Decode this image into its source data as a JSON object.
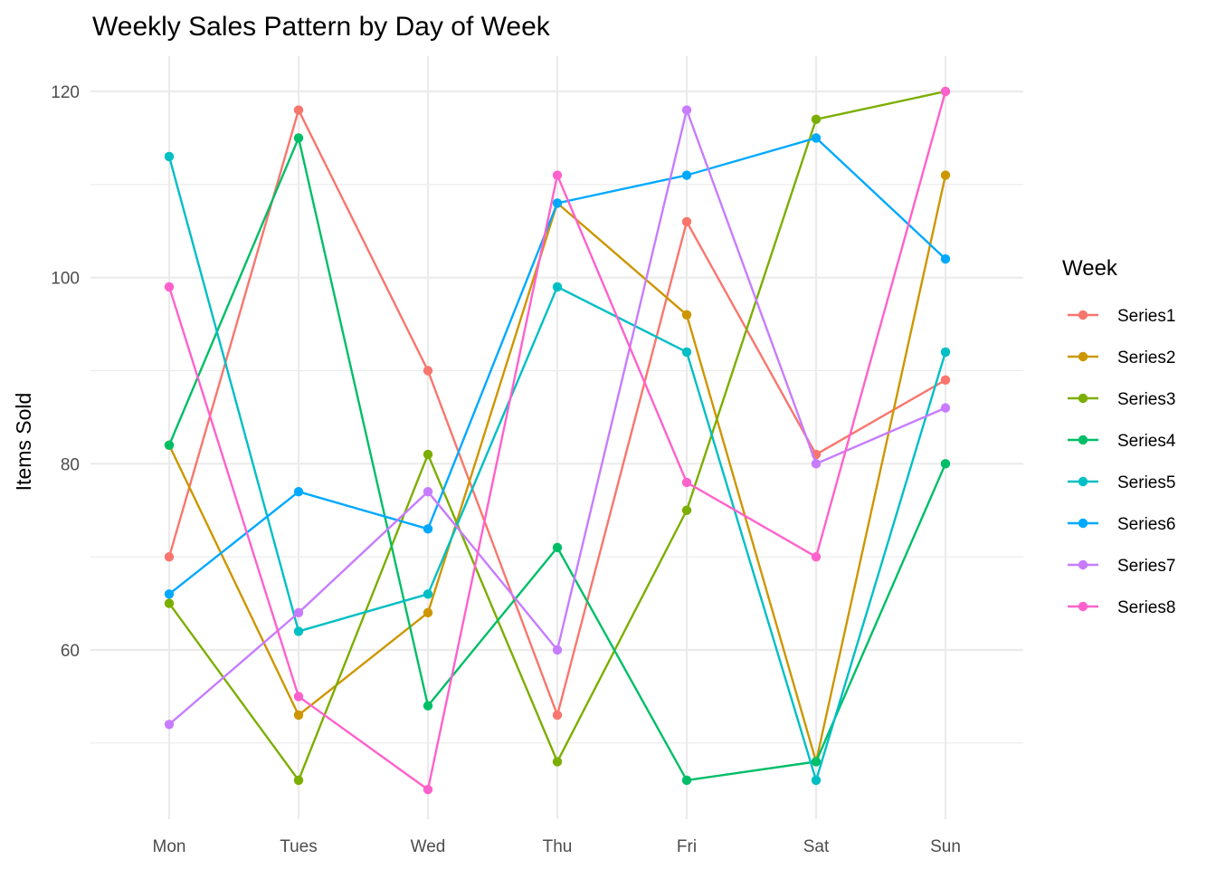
{
  "chart_data": {
    "type": "line",
    "title": "Weekly Sales Pattern by Day of Week",
    "xlabel": "",
    "ylabel": "Items Sold",
    "categories": [
      "Mon",
      "Tues",
      "Wed",
      "Thu",
      "Fri",
      "Sat",
      "Sun"
    ],
    "ylim": [
      42,
      124
    ],
    "yticks": [
      60,
      80,
      100,
      120
    ],
    "grid": true,
    "legend": {
      "title": "Week",
      "position": "right"
    },
    "series": [
      {
        "name": "Series1",
        "color": "#F8766D",
        "values": [
          70,
          118,
          90,
          53,
          106,
          81,
          89
        ]
      },
      {
        "name": "Series2",
        "color": "#CD9600",
        "values": [
          82,
          53,
          64,
          108,
          96,
          48,
          111
        ]
      },
      {
        "name": "Series3",
        "color": "#7CAE00",
        "values": [
          65,
          46,
          81,
          48,
          75,
          117,
          120
        ]
      },
      {
        "name": "Series4",
        "color": "#00BE67",
        "values": [
          82,
          115,
          54,
          71,
          46,
          48,
          80
        ]
      },
      {
        "name": "Series5",
        "color": "#00BFC4",
        "values": [
          113,
          62,
          66,
          99,
          92,
          46,
          92
        ]
      },
      {
        "name": "Series6",
        "color": "#00A9FF",
        "values": [
          66,
          77,
          73,
          108,
          111,
          115,
          102
        ]
      },
      {
        "name": "Series7",
        "color": "#C77CFF",
        "values": [
          52,
          64,
          77,
          60,
          118,
          80,
          86
        ]
      },
      {
        "name": "Series8",
        "color": "#FF61CC",
        "values": [
          99,
          55,
          45,
          111,
          78,
          70,
          120
        ]
      }
    ]
  }
}
